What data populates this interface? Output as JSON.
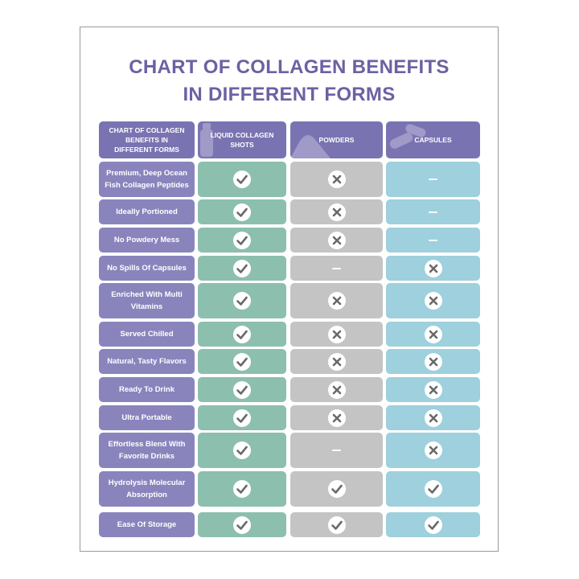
{
  "title": {
    "line1": "CHART OF COLLAGEN BENEFITS",
    "line2": "IN DIFFERENT FORMS"
  },
  "header": {
    "corner": "CHART OF COLLAGEN BENEFITS IN DIFFERENT FORMS",
    "columns": [
      "LIQUID COLLAGEN SHOTS",
      "POWDERS",
      "CAPSULES"
    ]
  },
  "colors": {
    "title": "#6a62a3",
    "header": "#7a73b2",
    "label": "#8a84bd",
    "liquid": "#8cbfae",
    "powders": "#c4c4c4",
    "capsules": "#9ed0dd"
  },
  "rows": [
    {
      "label": "Premium, Deep Ocean Fish Collagen Peptides",
      "values": [
        "check",
        "cross",
        "dash"
      ]
    },
    {
      "label": "Ideally Portioned",
      "values": [
        "check",
        "cross",
        "dash"
      ]
    },
    {
      "label": "No Powdery Mess",
      "values": [
        "check",
        "cross",
        "dash"
      ]
    },
    {
      "label": "No Spills Of Capsules",
      "values": [
        "check",
        "dash",
        "cross"
      ]
    },
    {
      "label": "Enriched With Multi Vitamins",
      "values": [
        "check",
        "cross",
        "cross"
      ]
    },
    {
      "label": "Served Chilled",
      "values": [
        "check",
        "cross",
        "cross"
      ]
    },
    {
      "label": "Natural, Tasty Flavors",
      "values": [
        "check",
        "cross",
        "cross"
      ]
    },
    {
      "label": "Ready To Drink",
      "values": [
        "check",
        "cross",
        "cross"
      ]
    },
    {
      "label": "Ultra Portable",
      "values": [
        "check",
        "cross",
        "cross"
      ]
    },
    {
      "label": "Effortless Blend With Favorite Drinks",
      "values": [
        "check",
        "dash",
        "cross"
      ]
    },
    {
      "label": "Hydrolysis Molecular Absorption",
      "values": [
        "check",
        "check",
        "check"
      ]
    },
    {
      "label": "Ease Of Storage",
      "values": [
        "check",
        "check",
        "check"
      ]
    }
  ]
}
